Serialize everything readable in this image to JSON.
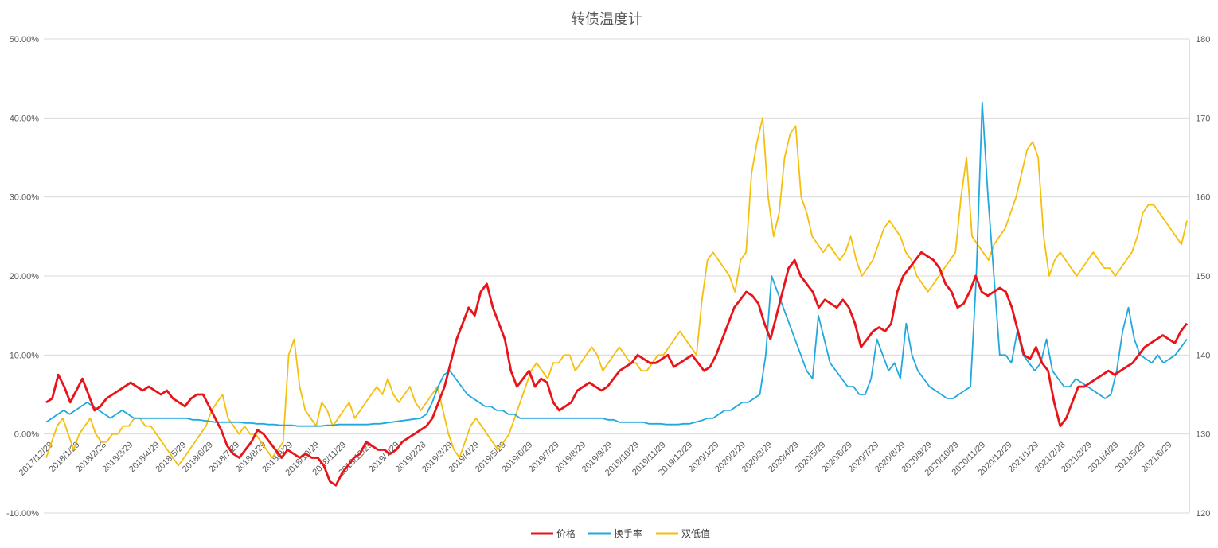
{
  "chart_data": {
    "type": "line",
    "title": "转债温度计",
    "legend_position": "bottom",
    "grid": true,
    "colors": {
      "价格": "#e8141a",
      "换手率": "#21a9dd",
      "双低值": "#f5bf0e"
    },
    "y_left": {
      "min": -0.1,
      "max": 0.5,
      "ticks": [
        "-10.00%",
        "0.00%",
        "10.00%",
        "20.00%",
        "30.00%",
        "40.00%",
        "50.00%"
      ]
    },
    "y_right": {
      "min": 120,
      "max": 180,
      "ticks": [
        "120",
        "130",
        "140",
        "150",
        "160",
        "170",
        "180"
      ]
    },
    "x_ticks": [
      "2017/12/29",
      "2018/1/29",
      "2018/2/28",
      "2018/3/29",
      "2018/4/29",
      "2018/5/29",
      "2018/6/29",
      "2018/7/29",
      "2018/8/29",
      "2018/9/29",
      "2018/10/29",
      "2018/11/29",
      "2018/12/29",
      "2019/1/29",
      "2019/2/28",
      "2019/3/29",
      "2019/4/29",
      "2019/5/29",
      "2019/6/29",
      "2019/7/29",
      "2019/8/29",
      "2019/9/29",
      "2019/10/29",
      "2019/11/29",
      "2019/12/29",
      "2020/1/29",
      "2020/2/29",
      "2020/3/29",
      "2020/4/29",
      "2020/5/29",
      "2020/6/29",
      "2020/7/29",
      "2020/8/29",
      "2020/9/29",
      "2020/10/29",
      "2020/11/29",
      "2020/12/29",
      "2021/1/29",
      "2021/2/28",
      "2021/3/29",
      "2021/4/29",
      "2021/5/29",
      "2021/6/29"
    ],
    "series": [
      {
        "name": "价格",
        "axis": "left",
        "values": [
          0.04,
          0.045,
          0.075,
          0.06,
          0.04,
          0.055,
          0.07,
          0.05,
          0.03,
          0.035,
          0.045,
          0.05,
          0.055,
          0.06,
          0.065,
          0.06,
          0.055,
          0.06,
          0.055,
          0.05,
          0.055,
          0.045,
          0.04,
          0.035,
          0.045,
          0.05,
          0.05,
          0.035,
          0.02,
          0.005,
          -0.015,
          -0.025,
          -0.03,
          -0.02,
          -0.01,
          0.005,
          0.0,
          -0.01,
          -0.02,
          -0.03,
          -0.02,
          -0.025,
          -0.03,
          -0.025,
          -0.03,
          -0.03,
          -0.04,
          -0.06,
          -0.065,
          -0.05,
          -0.04,
          -0.03,
          -0.025,
          -0.01,
          -0.015,
          -0.02,
          -0.02,
          -0.025,
          -0.02,
          -0.01,
          -0.005,
          0.0,
          0.005,
          0.01,
          0.02,
          0.04,
          0.06,
          0.09,
          0.12,
          0.14,
          0.16,
          0.15,
          0.18,
          0.19,
          0.16,
          0.14,
          0.12,
          0.08,
          0.06,
          0.07,
          0.08,
          0.06,
          0.07,
          0.065,
          0.04,
          0.03,
          0.035,
          0.04,
          0.055,
          0.06,
          0.065,
          0.06,
          0.055,
          0.06,
          0.07,
          0.08,
          0.085,
          0.09,
          0.1,
          0.095,
          0.09,
          0.09,
          0.095,
          0.1,
          0.085,
          0.09,
          0.095,
          0.1,
          0.09,
          0.08,
          0.085,
          0.1,
          0.12,
          0.14,
          0.16,
          0.17,
          0.18,
          0.175,
          0.165,
          0.14,
          0.12,
          0.15,
          0.18,
          0.21,
          0.22,
          0.2,
          0.19,
          0.18,
          0.16,
          0.17,
          0.165,
          0.16,
          0.17,
          0.16,
          0.14,
          0.11,
          0.12,
          0.13,
          0.135,
          0.13,
          0.14,
          0.18,
          0.2,
          0.21,
          0.22,
          0.23,
          0.225,
          0.22,
          0.21,
          0.19,
          0.18,
          0.16,
          0.165,
          0.18,
          0.2,
          0.18,
          0.175,
          0.18,
          0.185,
          0.18,
          0.16,
          0.13,
          0.1,
          0.095,
          0.11,
          0.09,
          0.08,
          0.04,
          0.01,
          0.02,
          0.04,
          0.06,
          0.06,
          0.065,
          0.07,
          0.075,
          0.08,
          0.075,
          0.08,
          0.085,
          0.09,
          0.1,
          0.11,
          0.115,
          0.12,
          0.125,
          0.12,
          0.115,
          0.13,
          0.14
        ]
      },
      {
        "name": "换手率",
        "axis": "left",
        "values": [
          0.015,
          0.02,
          0.025,
          0.03,
          0.025,
          0.03,
          0.035,
          0.04,
          0.035,
          0.03,
          0.025,
          0.02,
          0.025,
          0.03,
          0.025,
          0.02,
          0.02,
          0.02,
          0.02,
          0.02,
          0.02,
          0.02,
          0.02,
          0.02,
          0.02,
          0.018,
          0.018,
          0.017,
          0.016,
          0.015,
          0.015,
          0.015,
          0.015,
          0.015,
          0.014,
          0.014,
          0.013,
          0.013,
          0.012,
          0.012,
          0.011,
          0.011,
          0.011,
          0.01,
          0.01,
          0.01,
          0.01,
          0.01,
          0.011,
          0.011,
          0.012,
          0.012,
          0.012,
          0.012,
          0.012,
          0.012,
          0.013,
          0.013,
          0.014,
          0.015,
          0.016,
          0.017,
          0.018,
          0.019,
          0.02,
          0.025,
          0.04,
          0.06,
          0.075,
          0.08,
          0.07,
          0.06,
          0.05,
          0.045,
          0.04,
          0.035,
          0.035,
          0.03,
          0.03,
          0.025,
          0.025,
          0.02,
          0.02,
          0.02,
          0.02,
          0.02,
          0.02,
          0.02,
          0.02,
          0.02,
          0.02,
          0.02,
          0.02,
          0.02,
          0.02,
          0.02,
          0.018,
          0.018,
          0.015,
          0.015,
          0.015,
          0.015,
          0.015,
          0.013,
          0.013,
          0.013,
          0.012,
          0.012,
          0.012,
          0.013,
          0.013,
          0.015,
          0.017,
          0.02,
          0.02,
          0.025,
          0.03,
          0.03,
          0.035,
          0.04,
          0.04,
          0.045,
          0.05,
          0.1,
          0.2,
          0.18,
          0.16,
          0.14,
          0.12,
          0.1,
          0.08,
          0.07,
          0.15,
          0.12,
          0.09,
          0.08,
          0.07,
          0.06,
          0.06,
          0.05,
          0.05,
          0.07,
          0.12,
          0.1,
          0.08,
          0.09,
          0.07,
          0.14,
          0.1,
          0.08,
          0.07,
          0.06,
          0.055,
          0.05,
          0.045,
          0.045,
          0.05,
          0.055,
          0.06,
          0.2,
          0.42,
          0.3,
          0.2,
          0.1,
          0.1,
          0.09,
          0.13,
          0.1,
          0.09,
          0.08,
          0.09,
          0.12,
          0.08,
          0.07,
          0.06,
          0.06,
          0.07,
          0.065,
          0.06,
          0.055,
          0.05,
          0.045,
          0.05,
          0.08,
          0.13,
          0.16,
          0.12,
          0.1,
          0.095,
          0.09,
          0.1,
          0.09,
          0.095,
          0.1,
          0.11,
          0.12
        ]
      },
      {
        "name": "双低值",
        "axis": "right",
        "values": [
          127,
          129,
          131,
          132,
          130,
          128,
          130,
          131,
          132,
          130,
          129,
          129,
          130,
          130,
          131,
          131,
          132,
          132,
          131,
          131,
          130,
          129,
          128,
          127,
          126,
          127,
          128,
          129,
          130,
          131,
          133,
          134,
          135,
          132,
          131,
          130,
          131,
          130,
          130,
          129,
          128,
          127,
          128,
          129,
          140,
          142,
          136,
          133,
          132,
          131,
          134,
          133,
          131,
          132,
          133,
          134,
          132,
          133,
          134,
          135,
          136,
          135,
          137,
          135,
          134,
          135,
          136,
          134,
          133,
          134,
          135,
          136,
          133,
          130,
          128,
          127,
          129,
          131,
          132,
          131,
          130,
          129,
          128,
          129,
          130,
          132,
          134,
          136,
          138,
          139,
          138,
          137,
          139,
          139,
          140,
          140,
          138,
          139,
          140,
          141,
          140,
          138,
          139,
          140,
          141,
          140,
          139,
          139,
          138,
          138,
          139,
          140,
          140,
          141,
          142,
          143,
          142,
          141,
          140,
          147,
          152,
          153,
          152,
          151,
          150,
          148,
          152,
          153,
          163,
          167,
          170,
          160,
          155,
          158,
          165,
          168,
          169,
          160,
          158,
          155,
          154,
          153,
          154,
          153,
          152,
          153,
          155,
          152,
          150,
          151,
          152,
          154,
          156,
          157,
          156,
          155,
          153,
          152,
          150,
          149,
          148,
          149,
          150,
          151,
          152,
          153,
          160,
          165,
          155,
          154,
          153,
          152,
          154,
          155,
          156,
          158,
          160,
          163,
          166,
          167,
          165,
          155,
          150,
          152,
          153,
          152,
          151,
          150,
          151,
          152,
          153,
          152,
          151,
          151,
          150,
          151,
          152,
          153,
          155,
          158,
          159,
          159,
          158,
          157,
          156,
          155,
          154,
          157
        ]
      }
    ]
  }
}
